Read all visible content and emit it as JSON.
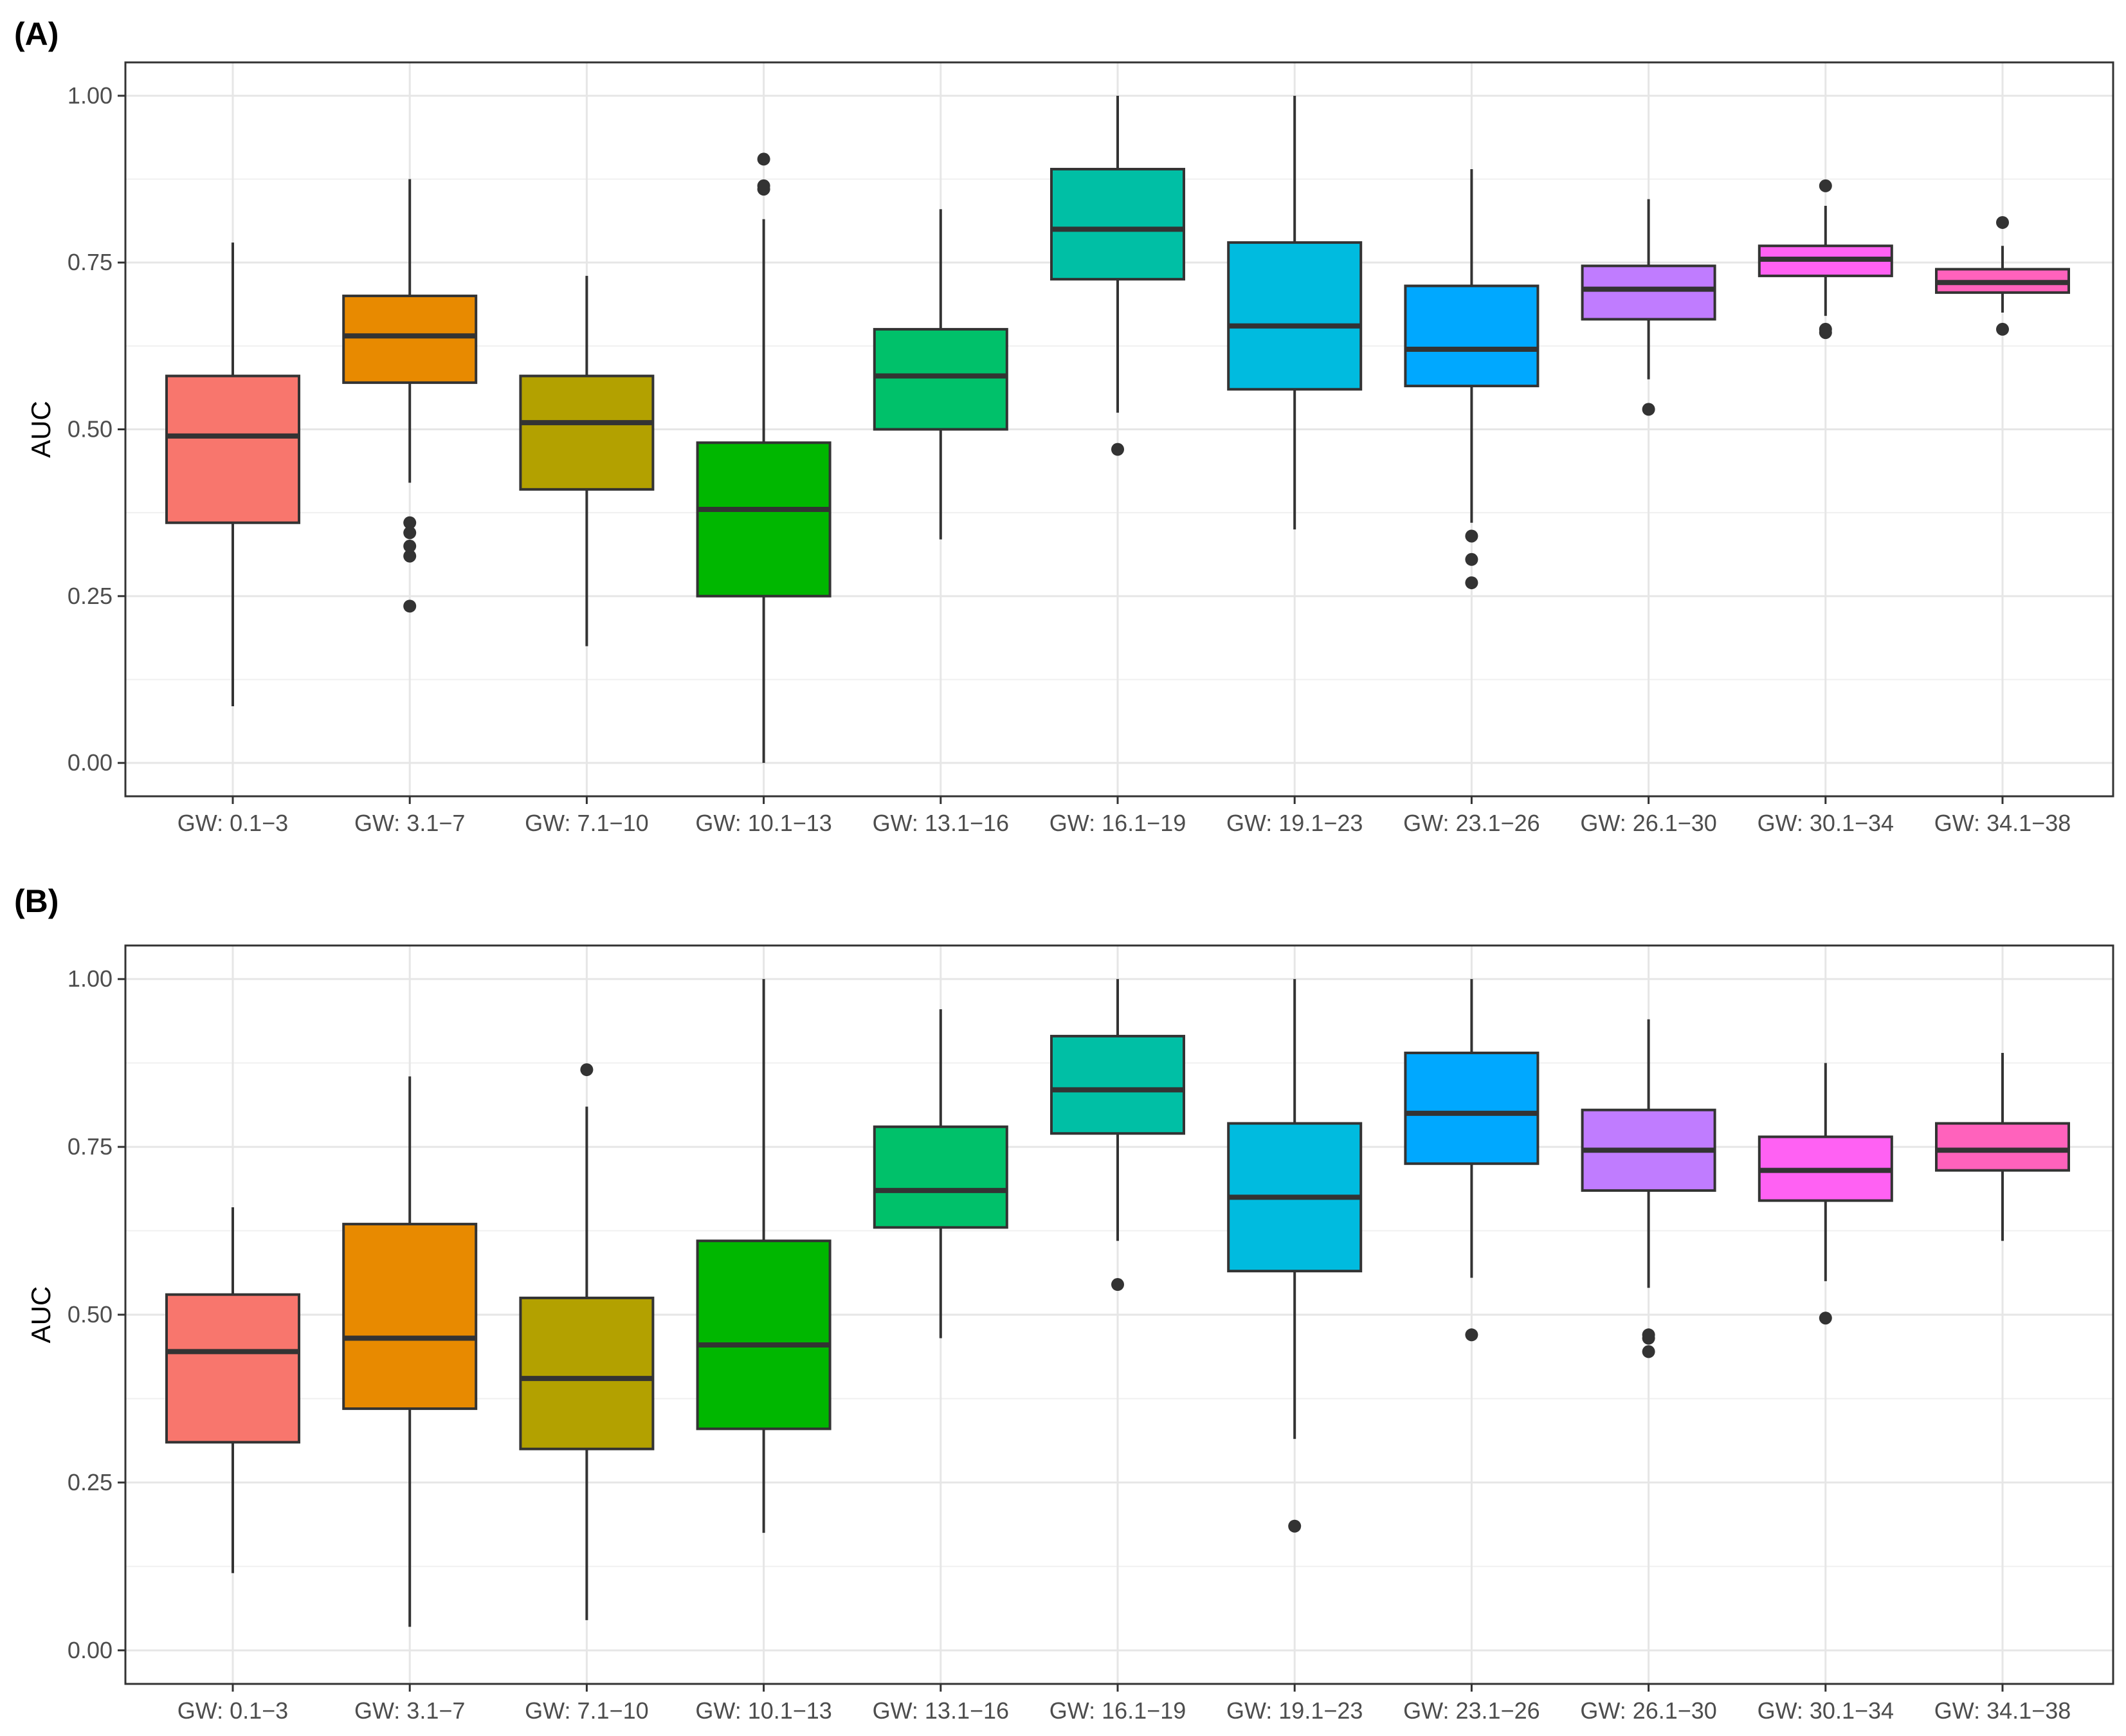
{
  "chart_data": [
    {
      "type": "boxplot",
      "panel_label": "(A)",
      "ylabel": "AUC",
      "xlabel": "",
      "ylim": [
        0.0,
        1.0
      ],
      "yticks": [
        "0.00",
        "0.25",
        "0.50",
        "0.75",
        "1.00"
      ],
      "grid": true,
      "categories": [
        "GW: 0.1−3",
        "GW: 3.1−7",
        "GW: 7.1−10",
        "GW: 10.1−13",
        "GW: 13.1−16",
        "GW: 16.1−19",
        "GW: 19.1−23",
        "GW: 23.1−26",
        "GW: 26.1−30",
        "GW: 30.1−34",
        "GW: 34.1−38"
      ],
      "colors": [
        "#F8766D",
        "#E88A00",
        "#B3A100",
        "#00B700",
        "#00C16A",
        "#00BFA5",
        "#00BBDF",
        "#00A8FF",
        "#C07CFF",
        "#FF61F3",
        "#FF62BC"
      ],
      "boxes": [
        {
          "q1": 0.36,
          "median": 0.49,
          "q3": 0.58,
          "whisker_low": 0.085,
          "whisker_high": 0.78,
          "outliers": []
        },
        {
          "q1": 0.57,
          "median": 0.64,
          "q3": 0.7,
          "whisker_low": 0.42,
          "whisker_high": 0.875,
          "outliers": [
            0.235,
            0.31,
            0.325,
            0.345,
            0.36
          ]
        },
        {
          "q1": 0.41,
          "median": 0.51,
          "q3": 0.58,
          "whisker_low": 0.175,
          "whisker_high": 0.73,
          "outliers": []
        },
        {
          "q1": 0.25,
          "median": 0.38,
          "q3": 0.48,
          "whisker_low": 0.0,
          "whisker_high": 0.815,
          "outliers": [
            0.86,
            0.865,
            0.905
          ]
        },
        {
          "q1": 0.5,
          "median": 0.58,
          "q3": 0.65,
          "whisker_low": 0.335,
          "whisker_high": 0.83,
          "outliers": []
        },
        {
          "q1": 0.725,
          "median": 0.8,
          "q3": 0.89,
          "whisker_low": 0.525,
          "whisker_high": 1.0,
          "outliers": [
            0.47
          ]
        },
        {
          "q1": 0.56,
          "median": 0.655,
          "q3": 0.78,
          "whisker_low": 0.35,
          "whisker_high": 1.0,
          "outliers": []
        },
        {
          "q1": 0.565,
          "median": 0.62,
          "q3": 0.715,
          "whisker_low": 0.36,
          "whisker_high": 0.89,
          "outliers": [
            0.27,
            0.305,
            0.34
          ]
        },
        {
          "q1": 0.665,
          "median": 0.71,
          "q3": 0.745,
          "whisker_low": 0.575,
          "whisker_high": 0.845,
          "outliers": [
            0.53
          ]
        },
        {
          "q1": 0.73,
          "median": 0.755,
          "q3": 0.775,
          "whisker_low": 0.67,
          "whisker_high": 0.835,
          "outliers": [
            0.645,
            0.65,
            0.865
          ]
        },
        {
          "q1": 0.705,
          "median": 0.72,
          "q3": 0.74,
          "whisker_low": 0.675,
          "whisker_high": 0.775,
          "outliers": [
            0.65,
            0.81
          ]
        }
      ]
    },
    {
      "type": "boxplot",
      "panel_label": "(B)",
      "ylabel": "AUC",
      "xlabel": "",
      "ylim": [
        0.0,
        1.0
      ],
      "yticks": [
        "0.00",
        "0.25",
        "0.50",
        "0.75",
        "1.00"
      ],
      "grid": true,
      "categories": [
        "GW: 0.1−3",
        "GW: 3.1−7",
        "GW: 7.1−10",
        "GW: 10.1−13",
        "GW: 13.1−16",
        "GW: 16.1−19",
        "GW: 19.1−23",
        "GW: 23.1−26",
        "GW: 26.1−30",
        "GW: 30.1−34",
        "GW: 34.1−38"
      ],
      "colors": [
        "#F8766D",
        "#E88A00",
        "#B3A100",
        "#00B700",
        "#00C16A",
        "#00BFA5",
        "#00BBDF",
        "#00A8FF",
        "#C07CFF",
        "#FF61F3",
        "#FF62BC"
      ],
      "boxes": [
        {
          "q1": 0.31,
          "median": 0.445,
          "q3": 0.53,
          "whisker_low": 0.115,
          "whisker_high": 0.66,
          "outliers": []
        },
        {
          "q1": 0.36,
          "median": 0.465,
          "q3": 0.635,
          "whisker_low": 0.035,
          "whisker_high": 0.855,
          "outliers": []
        },
        {
          "q1": 0.3,
          "median": 0.405,
          "q3": 0.525,
          "whisker_low": 0.045,
          "whisker_high": 0.81,
          "outliers": [
            0.865
          ]
        },
        {
          "q1": 0.33,
          "median": 0.455,
          "q3": 0.61,
          "whisker_low": 0.175,
          "whisker_high": 1.0,
          "outliers": []
        },
        {
          "q1": 0.63,
          "median": 0.685,
          "q3": 0.78,
          "whisker_low": 0.465,
          "whisker_high": 0.955,
          "outliers": []
        },
        {
          "q1": 0.77,
          "median": 0.835,
          "q3": 0.915,
          "whisker_low": 0.61,
          "whisker_high": 1.0,
          "outliers": [
            0.545
          ]
        },
        {
          "q1": 0.565,
          "median": 0.675,
          "q3": 0.785,
          "whisker_low": 0.315,
          "whisker_high": 1.0,
          "outliers": [
            0.185
          ]
        },
        {
          "q1": 0.725,
          "median": 0.8,
          "q3": 0.89,
          "whisker_low": 0.555,
          "whisker_high": 1.0,
          "outliers": [
            0.47
          ]
        },
        {
          "q1": 0.685,
          "median": 0.745,
          "q3": 0.805,
          "whisker_low": 0.54,
          "whisker_high": 0.94,
          "outliers": [
            0.445,
            0.465,
            0.47
          ]
        },
        {
          "q1": 0.67,
          "median": 0.715,
          "q3": 0.765,
          "whisker_low": 0.55,
          "whisker_high": 0.875,
          "outliers": [
            0.495
          ]
        },
        {
          "q1": 0.715,
          "median": 0.745,
          "q3": 0.785,
          "whisker_low": 0.61,
          "whisker_high": 0.89,
          "outliers": []
        }
      ]
    }
  ]
}
